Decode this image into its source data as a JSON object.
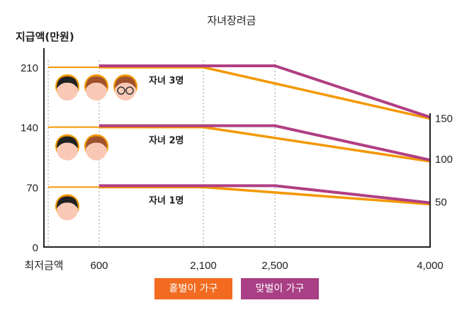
{
  "chart_data": {
    "type": "line",
    "title": "자녀장려금",
    "ylabel": "지급액(만원)",
    "xlabel": "",
    "x_ticks": [
      "최저금액",
      "600",
      "2,100",
      "2,500",
      "4,000"
    ],
    "x_values": [
      0,
      600,
      2100,
      2500,
      4000
    ],
    "y_ticks": [
      0,
      70,
      140,
      210
    ],
    "right_ticks": [
      50,
      100,
      150
    ],
    "ylim": [
      0,
      210
    ],
    "grid": "vertical dotted",
    "legend_placement": "bottom",
    "groups": [
      {
        "label": "자녀 3명",
        "single": {
          "x": [
            0,
            2100,
            4000
          ],
          "y": [
            210,
            210,
            150
          ]
        },
        "dual": {
          "x": [
            600,
            2500,
            4000
          ],
          "y": [
            210,
            210,
            150
          ]
        },
        "icons": [
          "boy-icon",
          "girl-icon",
          "glasses-kid-icon"
        ]
      },
      {
        "label": "자녀 2명",
        "single": {
          "x": [
            0,
            2100,
            4000
          ],
          "y": [
            140,
            140,
            100
          ]
        },
        "dual": {
          "x": [
            600,
            2500,
            4000
          ],
          "y": [
            140,
            140,
            100
          ]
        },
        "icons": [
          "boy-icon",
          "girl-icon"
        ]
      },
      {
        "label": "자녀 1명",
        "single": {
          "x": [
            0,
            2100,
            4000
          ],
          "y": [
            70,
            70,
            50
          ]
        },
        "dual": {
          "x": [
            600,
            2500,
            4000
          ],
          "y": [
            70,
            70,
            50
          ]
        },
        "icons": [
          "boy-icon"
        ]
      }
    ],
    "series": [
      {
        "name": "홑벌이 가구",
        "color": "#f39800",
        "legend_color": "#f26b21"
      },
      {
        "name": "맞벌이 가구",
        "color": "#b03f83",
        "legend_color": "#a93f85"
      }
    ]
  }
}
